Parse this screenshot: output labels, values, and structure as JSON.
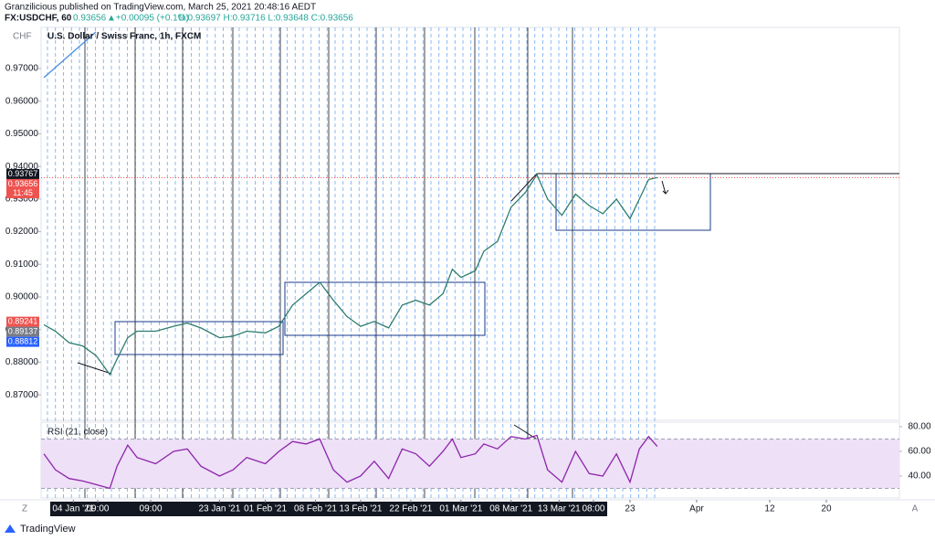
{
  "header": {
    "author_line": "Granzilicious published on TradingView.com, March 25, 2021 20:48:16 AEDT",
    "symbol": "FX:USDCHF, 60",
    "last": "0.93656",
    "change": "▲+0.00095 (+0.1%)",
    "ohlc": "O:0.93697 H:0.93716 L:0.93648 C:0.93656"
  },
  "footer": {
    "brand": "TradingView",
    "scale_left": "Z",
    "scale_right": "A"
  },
  "chart_data": [
    {
      "type": "line",
      "title": "U.S. Dollar / Swiss Franc, 1h, FXCM",
      "currency": "CHF",
      "color": "#2e7d6f",
      "x": [
        -1.1,
        0.5,
        2.4,
        4.3,
        6.2,
        8.1,
        9.1,
        10.6,
        11.9,
        14.5,
        17.0,
        18.9,
        20.8,
        23.4,
        25.3,
        27.2,
        29.8,
        31.7,
        33.6,
        35.5,
        37.4,
        39.3,
        41.2,
        43.1,
        45.0,
        47.0,
        48.9,
        50.8,
        52.7,
        54.6,
        55.9,
        57.1,
        59.1,
        60.3,
        62.2,
        64.1,
        66.1,
        67.7,
        69.2,
        71.2,
        73.1,
        75.0,
        76.9,
        78.8,
        80.7,
        82.0,
        83.3,
        84.5
      ],
      "values": [
        0.8915,
        0.8895,
        0.886,
        0.885,
        0.882,
        0.8762,
        0.881,
        0.8875,
        0.8895,
        0.8895,
        0.891,
        0.892,
        0.8905,
        0.8875,
        0.888,
        0.8895,
        0.889,
        0.891,
        0.8975,
        0.901,
        0.9045,
        0.899,
        0.894,
        0.891,
        0.8925,
        0.8905,
        0.8975,
        0.899,
        0.8975,
        0.901,
        0.9085,
        0.906,
        0.908,
        0.914,
        0.917,
        0.9275,
        0.932,
        0.9375,
        0.93,
        0.925,
        0.9315,
        0.928,
        0.9255,
        0.93,
        0.924,
        0.93,
        0.936,
        0.93656
      ],
      "xlim": [
        -1.5,
        118.3
      ],
      "ylim": [
        0.8622,
        0.9826
      ],
      "yticks": [
        {
          "value": 0.87,
          "label": "0.87000"
        },
        {
          "value": 0.88,
          "label": "0.88000"
        },
        {
          "value": 0.89,
          "label": "0.89000"
        },
        {
          "value": 0.9,
          "label": "0.90000"
        },
        {
          "value": 0.91,
          "label": "0.91000"
        },
        {
          "value": 0.92,
          "label": "0.92000"
        },
        {
          "value": 0.93,
          "label": "0.93000"
        },
        {
          "value": 0.94,
          "label": "0.94000"
        },
        {
          "value": 0.95,
          "label": "0.95000"
        },
        {
          "value": 0.96,
          "label": "0.96000"
        },
        {
          "value": 0.97,
          "label": "0.97000"
        }
      ],
      "xticks": [
        {
          "value": 3,
          "label": "04 Jan '21"
        },
        {
          "value": 6.4,
          "label": "09:00"
        },
        {
          "value": 13.8,
          "label": "09:00"
        },
        {
          "value": 23.4,
          "label": "23 Jan '21"
        },
        {
          "value": 29.8,
          "label": "01 Feb '21"
        },
        {
          "value": 36.8,
          "label": "08 Feb '21"
        },
        {
          "value": 43.1,
          "label": "13 Feb '21"
        },
        {
          "value": 50.1,
          "label": "22 Feb '21"
        },
        {
          "value": 57.1,
          "label": "01 Mar '21"
        },
        {
          "value": 64.1,
          "label": "08 Mar '21"
        },
        {
          "value": 70.8,
          "label": "13 Mar '21"
        },
        {
          "value": 75.6,
          "label": "08:00"
        },
        {
          "value": 80.7,
          "label": "23"
        },
        {
          "value": 90,
          "label": "Apr"
        },
        {
          "value": 100.2,
          "label": "12"
        },
        {
          "value": 108.1,
          "label": "20"
        }
      ],
      "price_labels": [
        {
          "value": 0.93767,
          "label": "0.93767",
          "color": "#131722"
        },
        {
          "value": 0.93656,
          "label": "0.93656",
          "color": "#ef5350"
        },
        {
          "value": 0.89241,
          "label": "0.89241",
          "color": "#ef5350"
        },
        {
          "value": 0.89137,
          "label": "0.89137",
          "color": "#787b86"
        },
        {
          "value": 0.88812,
          "label": "0.88812",
          "color": "#2962ff"
        }
      ],
      "countdown": "11:45"
    },
    {
      "type": "line",
      "title": "RSI (21, close)",
      "color": "#8e24aa",
      "x": [
        -1.1,
        0.5,
        2.4,
        4.3,
        6.2,
        8.1,
        9.1,
        10.6,
        11.9,
        14.5,
        17.0,
        18.9,
        20.8,
        23.4,
        25.3,
        27.2,
        29.8,
        31.7,
        33.6,
        35.5,
        37.4,
        39.3,
        41.2,
        43.1,
        45.0,
        47.0,
        48.9,
        50.8,
        52.7,
        54.6,
        55.9,
        57.1,
        59.1,
        60.3,
        62.2,
        64.1,
        66.1,
        67.7,
        69.2,
        71.2,
        73.1,
        75.0,
        76.9,
        78.8,
        80.7,
        82.0,
        83.3,
        84.5
      ],
      "values": [
        58,
        45,
        38,
        36,
        33,
        30,
        48,
        65,
        55,
        50,
        60,
        62,
        48,
        40,
        45,
        55,
        50,
        60,
        68,
        66,
        70,
        45,
        35,
        40,
        52,
        38,
        62,
        58,
        48,
        60,
        70,
        55,
        58,
        66,
        62,
        72,
        70,
        73,
        45,
        35,
        60,
        42,
        40,
        58,
        35,
        62,
        72,
        64
      ],
      "xlim": [
        -1.5,
        118.3
      ],
      "ylim": [
        22.2,
        83.7
      ],
      "band": [
        30,
        70
      ],
      "yticks": [
        {
          "value": 40,
          "label": "40.00"
        },
        {
          "value": 60,
          "label": "60.00"
        },
        {
          "value": 80,
          "label": "80.00"
        }
      ]
    }
  ]
}
